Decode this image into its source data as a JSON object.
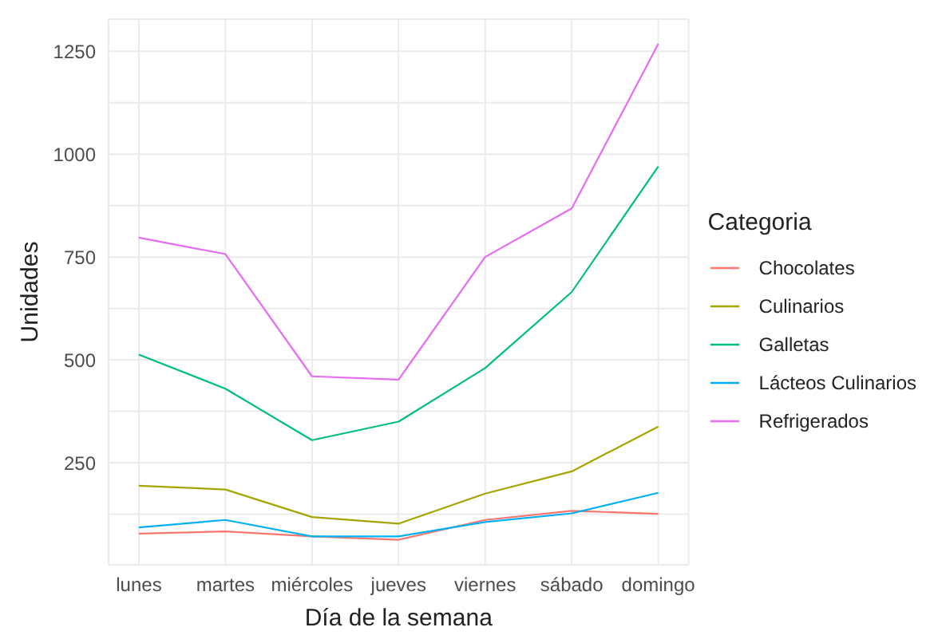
{
  "chart_data": {
    "type": "line",
    "xlabel": "Día de la semana",
    "ylabel": "Unidades",
    "legend_title": "Categoria",
    "legend": "right",
    "grid": true,
    "marker": "none",
    "line_style": "solid",
    "categories": [
      "lunes",
      "martes",
      "miércoles",
      "jueves",
      "viernes",
      "sábado",
      "domingo"
    ],
    "ylim": [
      2,
      1328
    ],
    "yticks": [
      {
        "value": 125,
        "label": null
      },
      250,
      {
        "value": 375,
        "label": null
      },
      500,
      {
        "value": 625,
        "label": null
      },
      750,
      {
        "value": 875,
        "label": null
      },
      1000,
      {
        "value": 1125,
        "label": null
      },
      1250
    ],
    "series": [
      {
        "name": "Chocolates",
        "color": "#f8766d",
        "values": [
          78,
          83,
          71,
          63,
          111,
          133,
          126
        ]
      },
      {
        "name": "Culinarios",
        "color": "#a3a500",
        "values": [
          194,
          185,
          118,
          102,
          175,
          229,
          338
        ]
      },
      {
        "name": "Galletas",
        "color": "#00bf7d",
        "values": [
          513,
          430,
          305,
          350,
          480,
          665,
          970
        ]
      },
      {
        "name": "Lácteos Culinarios",
        "color": "#00b0f6",
        "values": [
          93,
          111,
          71,
          71,
          106,
          127,
          177
        ]
      },
      {
        "name": "Refrigerados",
        "color": "#e76bf3",
        "values": [
          797,
          757,
          460,
          452,
          750,
          868,
          1268
        ]
      }
    ]
  }
}
